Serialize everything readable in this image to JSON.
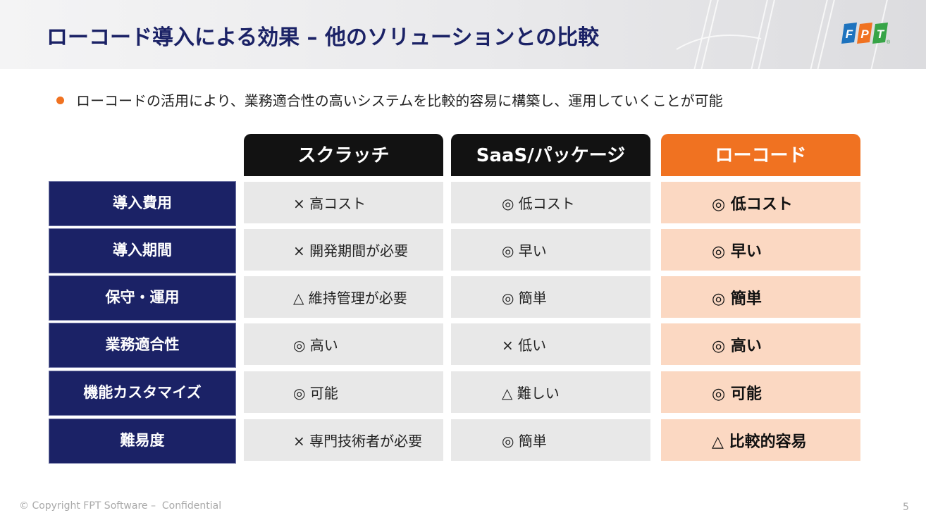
{
  "title": "ローコード導入による効果 – 他のソリューションとの比較",
  "logo": {
    "letters": [
      "F",
      "P",
      "T"
    ],
    "mark": "®",
    "colors": [
      "#1e73be",
      "#f07221",
      "#37a447"
    ]
  },
  "bullet": "ローコードの活用により、業務適合性の高いシステムを比較的容易に構築し、運用していくことが可能",
  "columns": [
    "スクラッチ",
    "SaaS/パッケージ",
    "ローコード"
  ],
  "rows": [
    {
      "label": "導入費用",
      "cells": [
        "× 高コスト",
        "◎ 低コスト",
        "◎ 低コスト"
      ]
    },
    {
      "label": "導入期間",
      "cells": [
        "× 開発期間が必要",
        "◎ 早い",
        "◎ 早い"
      ]
    },
    {
      "label": "保守・運用",
      "cells": [
        "△ 維持管理が必要",
        "◎ 簡単",
        "◎ 簡単"
      ]
    },
    {
      "label": "業務適合性",
      "cells": [
        "◎ 高い",
        "× 低い",
        "◎ 高い"
      ]
    },
    {
      "label": "機能カスタマイズ",
      "cells": [
        "◎ 可能",
        "△ 難しい",
        "◎ 可能"
      ]
    },
    {
      "label": "難易度",
      "cells": [
        "× 専門技術者が必要",
        "◎ 簡単",
        "△ 比較的容易"
      ]
    }
  ],
  "footer": "© Copyright FPT Software –  Confidential",
  "page_number": "5",
  "colors": {
    "navy": "#1b2266",
    "orange": "#f07221",
    "peach": "#fbd8c2",
    "gray": "#e8e8e8",
    "dark": "#121212"
  }
}
